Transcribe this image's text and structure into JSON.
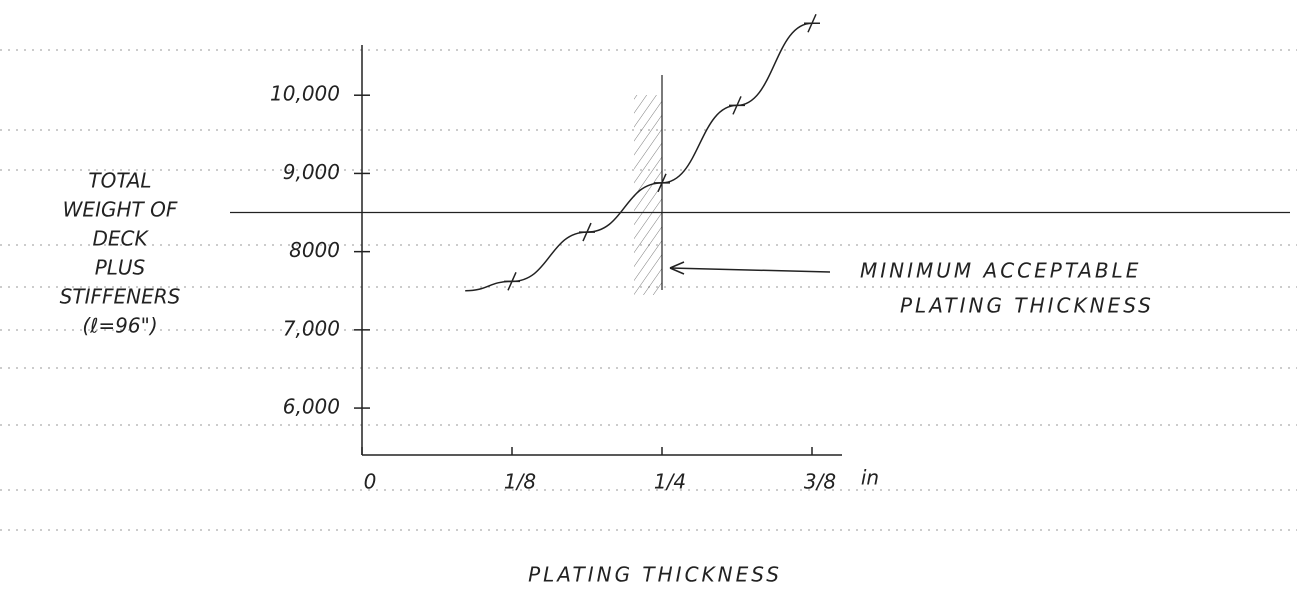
{
  "chart_data": {
    "type": "line",
    "y_label_lines": [
      "TOTAL",
      "WEIGHT OF",
      "DECK",
      "PLUS",
      "STIFFENERS",
      "(ℓ=96\")"
    ],
    "x_label": "PLATING THICKNESS",
    "x_unit": "in",
    "annotation_lines": [
      "MINIMUM ACCEPTABLE",
      "PLATING THICKNESS"
    ],
    "color": "#222222",
    "x": [
      0.086,
      0.125,
      0.1875,
      0.25,
      0.3125,
      0.375
    ],
    "values": [
      7500,
      7620,
      8250,
      8880,
      9870,
      10920
    ],
    "points": {
      "x": [
        0.125,
        0.1875,
        0.25,
        0.3125,
        0.375
      ],
      "values": [
        7620,
        8250,
        8880,
        9870,
        10920
      ]
    },
    "reference_y": 8500,
    "reference_x": 0.25,
    "xlim": [
      0,
      0.4
    ],
    "ylim": [
      5400,
      11000
    ],
    "xticks": [
      {
        "value": 0,
        "label": "0"
      },
      {
        "value": 0.125,
        "label": "1/8"
      },
      {
        "value": 0.25,
        "label": "1/4"
      },
      {
        "value": 0.375,
        "label": "3/8"
      }
    ],
    "yticks": [
      {
        "value": 6000,
        "label": "6,000"
      },
      {
        "value": 7000,
        "label": "7,000"
      },
      {
        "value": 8000,
        "label": "8000"
      },
      {
        "value": 9000,
        "label": "9,000"
      },
      {
        "value": 10000,
        "label": "10,000"
      }
    ]
  }
}
